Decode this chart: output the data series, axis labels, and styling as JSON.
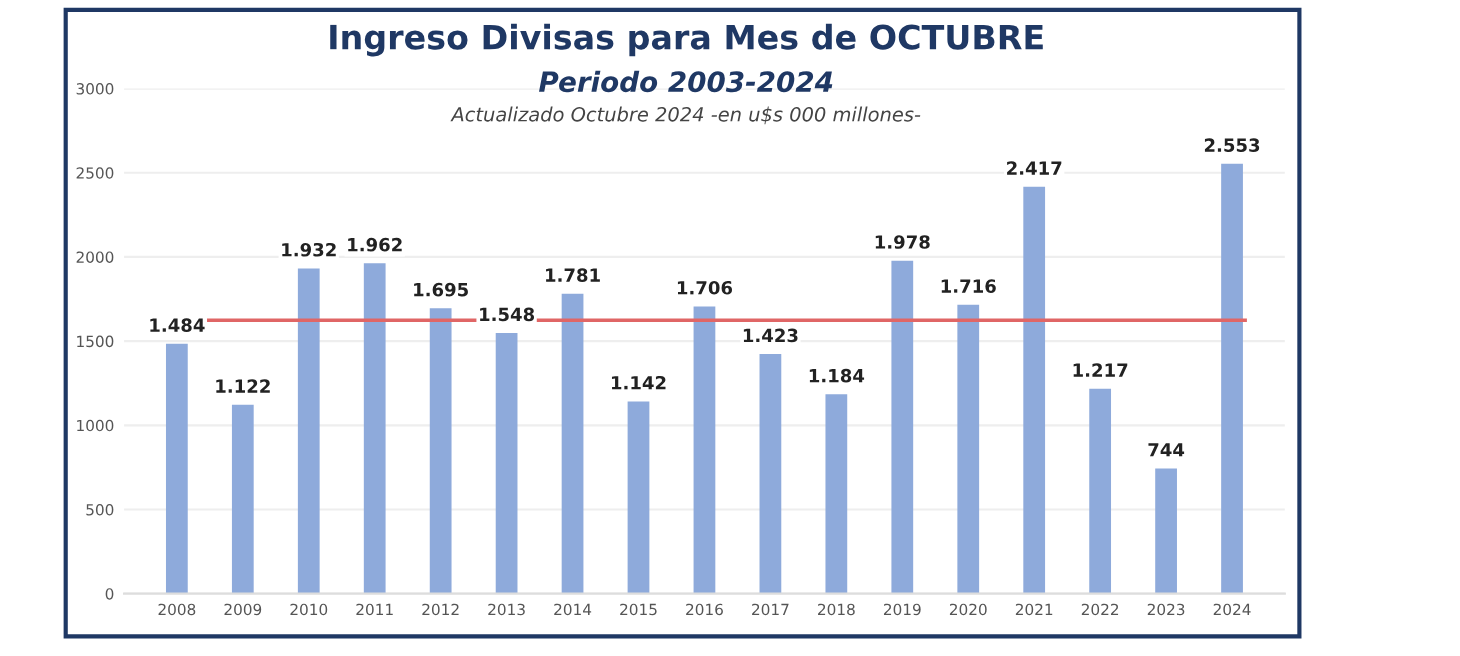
{
  "chart_data": {
    "type": "bar",
    "title": "Ingreso Divisas para Mes de OCTUBRE",
    "subtitle": "Periodo 2003-2024",
    "annotations": [
      "Actualizado Octubre 2024 -en u$s 000 millones-"
    ],
    "categories": [
      "2008",
      "2009",
      "2010",
      "2011",
      "2012",
      "2013",
      "2014",
      "2015",
      "2016",
      "2017",
      "2018",
      "2019",
      "2020",
      "2021",
      "2022",
      "2023",
      "2024"
    ],
    "values": [
      1484,
      1122,
      1932,
      1962,
      1695,
      1548,
      1781,
      1142,
      1706,
      1423,
      1184,
      1978,
      1716,
      2417,
      1217,
      744,
      2553
    ],
    "value_labels": [
      "1.484",
      "1.122",
      "1.932",
      "1.962",
      "1.695",
      "1.548",
      "1.781",
      "1.142",
      "1.706",
      "1.423",
      "1.184",
      "1.978",
      "1.716",
      "2.417",
      "1.217",
      "744",
      "2.553"
    ],
    "color": "#8eaadb",
    "ylim": [
      0,
      3000
    ],
    "yticks": [
      0,
      500,
      1000,
      1500,
      2000,
      2500,
      3000
    ],
    "grid": "y",
    "ref_lines": [
      {
        "axis": "y",
        "value": 1624,
        "color": "#e06666"
      }
    ]
  }
}
